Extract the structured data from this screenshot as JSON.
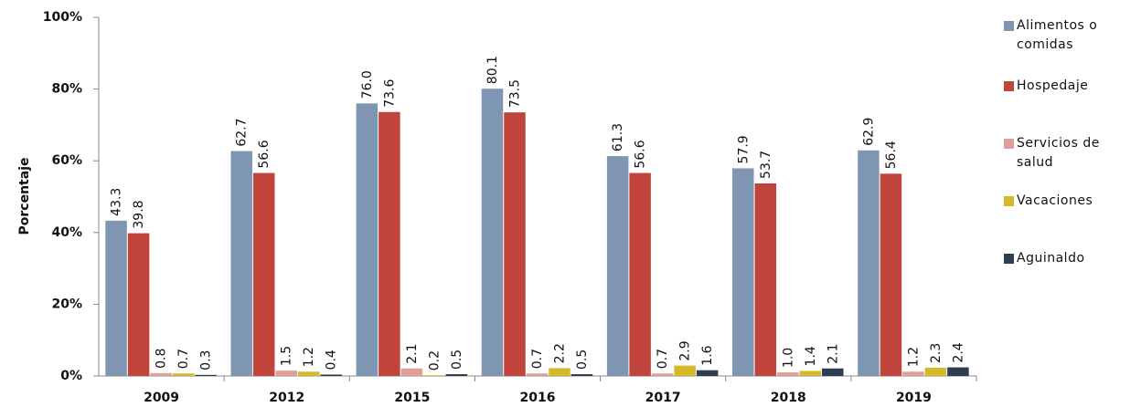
{
  "chart_data": {
    "type": "bar",
    "y_label": "Porcentaje",
    "categories": [
      "2009",
      "2012",
      "2015",
      "2016",
      "2017",
      "2018",
      "2019"
    ],
    "series": [
      {
        "name": "Alimentos o comidas",
        "color": "#7f96b2",
        "values": [
          43.3,
          62.7,
          76.0,
          80.1,
          61.3,
          57.9,
          62.9
        ],
        "value_labels": [
          "43.3",
          "62.7",
          "76.0",
          "80.1",
          "61.3",
          "57.9",
          "62.9"
        ]
      },
      {
        "name": "Hospedaje",
        "color": "#c0443c",
        "values": [
          39.8,
          56.6,
          73.6,
          73.5,
          56.6,
          53.7,
          56.4
        ],
        "value_labels": [
          "39.8",
          "56.6",
          "73.6",
          "73.5",
          "56.6",
          "53.7",
          "56.4"
        ]
      },
      {
        "name": "Servicios de salud",
        "color": "#e0a09a",
        "values": [
          0.8,
          1.5,
          2.1,
          0.7,
          0.7,
          1.0,
          1.2
        ],
        "value_labels": [
          "0.8",
          "1.5",
          "2.1",
          "0.7",
          "0.7",
          "1.0",
          "1.2"
        ]
      },
      {
        "name": "Vacaciones",
        "color": "#d4b92a",
        "values": [
          0.7,
          1.2,
          0.2,
          2.2,
          2.9,
          1.4,
          2.3
        ],
        "value_labels": [
          "0.7",
          "1.2",
          "0.2",
          "2.2",
          "2.9",
          "1.4",
          "2.3"
        ]
      },
      {
        "name": "Aguinaldo",
        "color": "#2f3e4e",
        "values": [
          0.3,
          0.4,
          0.5,
          0.5,
          1.6,
          2.1,
          2.4
        ],
        "value_labels": [
          "0.3",
          "0.4",
          "0.5",
          "0.5",
          "1.6",
          "2.1",
          "2.4"
        ]
      }
    ],
    "ylim": [
      0,
      100
    ],
    "yticks": [
      {
        "value": 0,
        "label": "0%"
      },
      {
        "value": 20,
        "label": "20%"
      },
      {
        "value": 40,
        "label": "40%"
      },
      {
        "value": 60,
        "label": "60%"
      },
      {
        "value": 80,
        "label": "80%"
      },
      {
        "value": 100,
        "label": "100%"
      }
    ],
    "legend": "right"
  }
}
